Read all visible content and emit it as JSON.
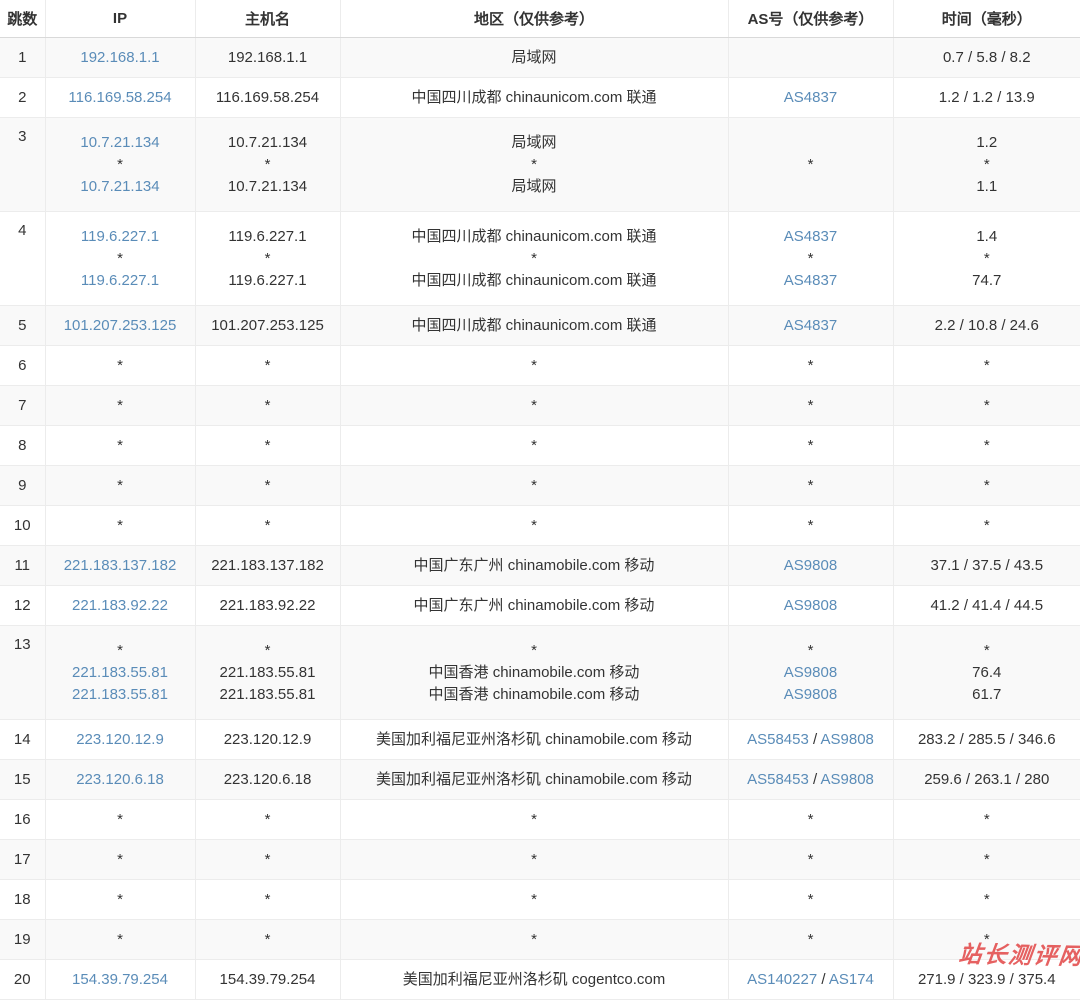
{
  "colors": {
    "link": "#5a8cb8",
    "watermark_red": "#df3434",
    "stripe": "#f9f9f9",
    "border": "#ececec"
  },
  "watermark": {
    "text": "站长测评网"
  },
  "table": {
    "columns": [
      {
        "key": "hop",
        "label": "跳数"
      },
      {
        "key": "ip",
        "label": "IP"
      },
      {
        "key": "host",
        "label": "主机名"
      },
      {
        "key": "region",
        "label": "地区（仅供参考）"
      },
      {
        "key": "as",
        "label": "AS号（仅供参考）"
      },
      {
        "key": "time",
        "label": "时间（毫秒）"
      }
    ],
    "rows": [
      {
        "hop": "1",
        "ip": [
          "192.168.1.1"
        ],
        "host": [
          "192.168.1.1"
        ],
        "region": [
          "局域网"
        ],
        "as": [
          ""
        ],
        "time": [
          "0.7 / 5.8 / 8.2"
        ]
      },
      {
        "hop": "2",
        "ip": [
          "116.169.58.254"
        ],
        "host": [
          "116.169.58.254"
        ],
        "region": [
          "中国四川成都 chinaunicom.com 联通"
        ],
        "as": [
          "AS4837"
        ],
        "time": [
          "1.2 / 1.2 / 13.9"
        ]
      },
      {
        "hop": "3",
        "ip": [
          "10.7.21.134",
          "*",
          "10.7.21.134"
        ],
        "host": [
          "10.7.21.134",
          "*",
          "10.7.21.134"
        ],
        "region": [
          "局域网",
          "*",
          "局域网"
        ],
        "as": [
          "*"
        ],
        "time": [
          "1.2",
          "*",
          "1.1"
        ]
      },
      {
        "hop": "4",
        "ip": [
          "119.6.227.1",
          "*",
          "119.6.227.1"
        ],
        "host": [
          "119.6.227.1",
          "*",
          "119.6.227.1"
        ],
        "region": [
          "中国四川成都 chinaunicom.com 联通",
          "*",
          "中国四川成都 chinaunicom.com 联通"
        ],
        "as": [
          "AS4837",
          "*",
          "AS4837"
        ],
        "time": [
          "1.4",
          "*",
          "74.7"
        ]
      },
      {
        "hop": "5",
        "ip": [
          "101.207.253.125"
        ],
        "host": [
          "101.207.253.125"
        ],
        "region": [
          "中国四川成都 chinaunicom.com 联通"
        ],
        "as": [
          "AS4837"
        ],
        "time": [
          "2.2 / 10.8 / 24.6"
        ]
      },
      {
        "hop": "6",
        "ip": [
          "*"
        ],
        "host": [
          "*"
        ],
        "region": [
          "*"
        ],
        "as": [
          "*"
        ],
        "time": [
          "*"
        ]
      },
      {
        "hop": "7",
        "ip": [
          "*"
        ],
        "host": [
          "*"
        ],
        "region": [
          "*"
        ],
        "as": [
          "*"
        ],
        "time": [
          "*"
        ]
      },
      {
        "hop": "8",
        "ip": [
          "*"
        ],
        "host": [
          "*"
        ],
        "region": [
          "*"
        ],
        "as": [
          "*"
        ],
        "time": [
          "*"
        ]
      },
      {
        "hop": "9",
        "ip": [
          "*"
        ],
        "host": [
          "*"
        ],
        "region": [
          "*"
        ],
        "as": [
          "*"
        ],
        "time": [
          "*"
        ]
      },
      {
        "hop": "10",
        "ip": [
          "*"
        ],
        "host": [
          "*"
        ],
        "region": [
          "*"
        ],
        "as": [
          "*"
        ],
        "time": [
          "*"
        ]
      },
      {
        "hop": "11",
        "ip": [
          "221.183.137.182"
        ],
        "host": [
          "221.183.137.182"
        ],
        "region": [
          "中国广东广州 chinamobile.com 移动"
        ],
        "as": [
          "AS9808"
        ],
        "time": [
          "37.1 / 37.5 / 43.5"
        ]
      },
      {
        "hop": "12",
        "ip": [
          "221.183.92.22"
        ],
        "host": [
          "221.183.92.22"
        ],
        "region": [
          "中国广东广州 chinamobile.com 移动"
        ],
        "as": [
          "AS9808"
        ],
        "time": [
          "41.2 / 41.4 / 44.5"
        ]
      },
      {
        "hop": "13",
        "ip": [
          "*",
          "221.183.55.81",
          "221.183.55.81"
        ],
        "host": [
          "*",
          "221.183.55.81",
          "221.183.55.81"
        ],
        "region": [
          "*",
          "中国香港 chinamobile.com 移动",
          "中国香港 chinamobile.com 移动"
        ],
        "as": [
          "*",
          "AS9808",
          "AS9808"
        ],
        "time": [
          "*",
          "76.4",
          "61.7"
        ]
      },
      {
        "hop": "14",
        "ip": [
          "223.120.12.9"
        ],
        "host": [
          "223.120.12.9"
        ],
        "region": [
          "美国加利福尼亚州洛杉矶 chinamobile.com 移动"
        ],
        "as": [
          "AS58453 / AS9808"
        ],
        "time": [
          "283.2 / 285.5 / 346.6"
        ]
      },
      {
        "hop": "15",
        "ip": [
          "223.120.6.18"
        ],
        "host": [
          "223.120.6.18"
        ],
        "region": [
          "美国加利福尼亚州洛杉矶 chinamobile.com 移动"
        ],
        "as": [
          "AS58453 / AS9808"
        ],
        "time": [
          "259.6 / 263.1 / 280"
        ]
      },
      {
        "hop": "16",
        "ip": [
          "*"
        ],
        "host": [
          "*"
        ],
        "region": [
          "*"
        ],
        "as": [
          "*"
        ],
        "time": [
          "*"
        ]
      },
      {
        "hop": "17",
        "ip": [
          "*"
        ],
        "host": [
          "*"
        ],
        "region": [
          "*"
        ],
        "as": [
          "*"
        ],
        "time": [
          "*"
        ]
      },
      {
        "hop": "18",
        "ip": [
          "*"
        ],
        "host": [
          "*"
        ],
        "region": [
          "*"
        ],
        "as": [
          "*"
        ],
        "time": [
          "*"
        ]
      },
      {
        "hop": "19",
        "ip": [
          "*"
        ],
        "host": [
          "*"
        ],
        "region": [
          "*"
        ],
        "as": [
          "*"
        ],
        "time": [
          "*"
        ]
      },
      {
        "hop": "20",
        "ip": [
          "154.39.79.254"
        ],
        "host": [
          "154.39.79.254"
        ],
        "region": [
          "美国加利福尼亚州洛杉矶 cogentco.com"
        ],
        "as": [
          "AS140227 / AS174"
        ],
        "time": [
          "271.9 / 323.9 / 375.4"
        ]
      }
    ]
  }
}
